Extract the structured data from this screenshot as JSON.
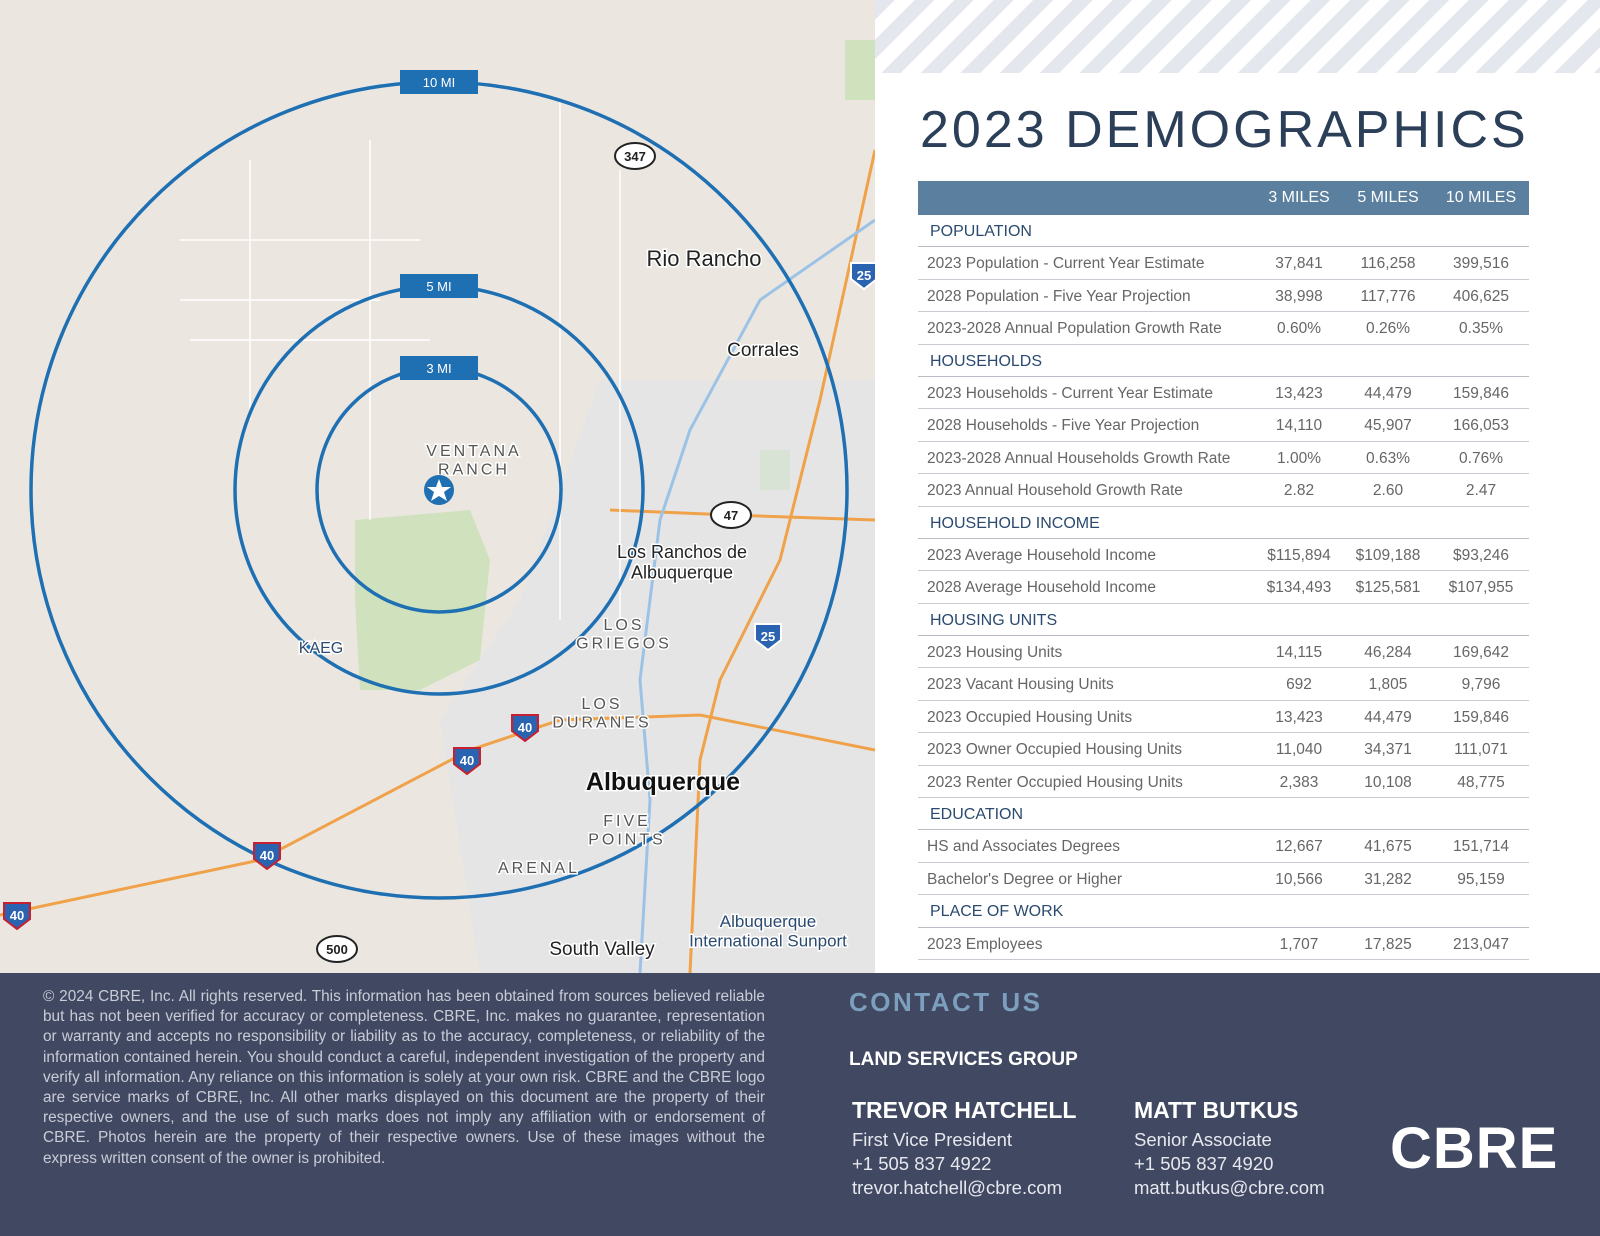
{
  "map": {
    "rings": [
      "10 MI",
      "5 MI",
      "3 MI"
    ],
    "labels": [
      {
        "lines": [
          "Rio Rancho"
        ]
      },
      {
        "lines": [
          "Corrales"
        ]
      },
      {
        "lines": [
          "VENTANA",
          "RANCH"
        ]
      },
      {
        "lines": [
          "Los Ranchos de",
          "Albuquerque"
        ]
      },
      {
        "lines": [
          "LOS",
          "GRIEGOS"
        ]
      },
      {
        "lines": [
          "LOS",
          "DURANES"
        ]
      },
      {
        "lines": [
          "Albuquerque"
        ]
      },
      {
        "lines": [
          "FIVE",
          "POINTS"
        ]
      },
      {
        "lines": [
          "ARENAL"
        ]
      },
      {
        "lines": [
          "South Valley"
        ]
      },
      {
        "lines": [
          "Albuquerque",
          "International Sunport"
        ]
      },
      {
        "lines": [
          "KAEG"
        ]
      }
    ],
    "shields": [
      "347",
      "47",
      "25",
      "25",
      "40",
      "40",
      "40",
      "40",
      "500"
    ]
  },
  "demographics": {
    "title": "2023 DEMOGRAPHICS",
    "columns": [
      "3 MILES",
      "5 MILES",
      "10 MILES"
    ],
    "sections": [
      {
        "name": "POPULATION",
        "rows": [
          {
            "label": "2023 Population - Current Year Estimate",
            "values": [
              "37,841",
              "116,258",
              "399,516"
            ]
          },
          {
            "label": "2028 Population - Five Year Projection",
            "values": [
              "38,998",
              "117,776",
              "406,625"
            ]
          },
          {
            "label": "2023-2028 Annual Population Growth Rate",
            "values": [
              "0.60%",
              "0.26%",
              "0.35%"
            ]
          }
        ]
      },
      {
        "name": "HOUSEHOLDS",
        "rows": [
          {
            "label": "2023 Households - Current Year Estimate",
            "values": [
              "13,423",
              "44,479",
              "159,846"
            ]
          },
          {
            "label": "2028 Households - Five Year Projection",
            "values": [
              "14,110",
              "45,907",
              "166,053"
            ]
          },
          {
            "label": "2023-2028 Annual Households Growth Rate",
            "values": [
              "1.00%",
              "0.63%",
              "0.76%"
            ]
          },
          {
            "label": "2023 Annual Household Growth Rate",
            "values": [
              "2.82",
              "2.60",
              "2.47"
            ]
          }
        ]
      },
      {
        "name": "HOUSEHOLD INCOME",
        "rows": [
          {
            "label": "2023 Average Household Income",
            "values": [
              "$115,894",
              "$109,188",
              "$93,246"
            ]
          },
          {
            "label": "2028 Average Household Income",
            "values": [
              "$134,493",
              "$125,581",
              "$107,955"
            ]
          }
        ]
      },
      {
        "name": "HOUSING UNITS",
        "rows": [
          {
            "label": "2023 Housing Units",
            "values": [
              "14,115",
              "46,284",
              "169,642"
            ]
          },
          {
            "label": "2023 Vacant Housing Units",
            "values": [
              "692",
              "1,805",
              "9,796"
            ]
          },
          {
            "label": "2023 Occupied Housing Units",
            "values": [
              "13,423",
              "44,479",
              "159,846"
            ]
          },
          {
            "label": "2023 Owner Occupied Housing Units",
            "values": [
              "11,040",
              "34,371",
              "111,071"
            ]
          },
          {
            "label": "2023 Renter Occupied Housing Units",
            "values": [
              "2,383",
              "10,108",
              "48,775"
            ]
          }
        ]
      },
      {
        "name": "EDUCATION",
        "rows": [
          {
            "label": "HS and Associates Degrees",
            "values": [
              "12,667",
              "41,675",
              "151,714"
            ]
          },
          {
            "label": "Bachelor's Degree or Higher",
            "values": [
              "10,566",
              "31,282",
              "95,159"
            ]
          }
        ]
      },
      {
        "name": "PLACE OF WORK",
        "rows": [
          {
            "label": "2023 Employees",
            "values": [
              "1,707",
              "17,825",
              "213,047"
            ]
          }
        ]
      }
    ]
  },
  "footer": {
    "disclaimer": "© 2024 CBRE, Inc. All rights reserved. This information has been obtained from sources believed reliable but has not been verified for accuracy or completeness. CBRE, Inc. makes no guarantee, representation or warranty and accepts no responsibility or liability as to the accuracy, completeness, or reliability of the information contained herein. You should conduct a careful, independent investigation of the property and verify all information. Any reliance on this information is solely at your own risk. CBRE and the CBRE logo are service marks of CBRE, Inc. All other marks displayed on this document are the property of their respective owners, and the use of such marks does not imply any affiliation with or endorsement of CBRE. Photos herein are the property of their respective owners. Use of these images without the express written consent of the owner is prohibited.",
    "contact_heading": "CONTACT US",
    "group": "LAND SERVICES GROUP",
    "people": [
      {
        "name": "TREVOR HATCHELL",
        "title": "First Vice President",
        "phone": "+1 505 837 4922",
        "email": "trevor.hatchell@cbre.com"
      },
      {
        "name": "MATT BUTKUS",
        "title": "Senior Associate",
        "phone": "+1 505 837 4920",
        "email": "matt.butkus@cbre.com"
      }
    ],
    "logo": "CBRE"
  }
}
